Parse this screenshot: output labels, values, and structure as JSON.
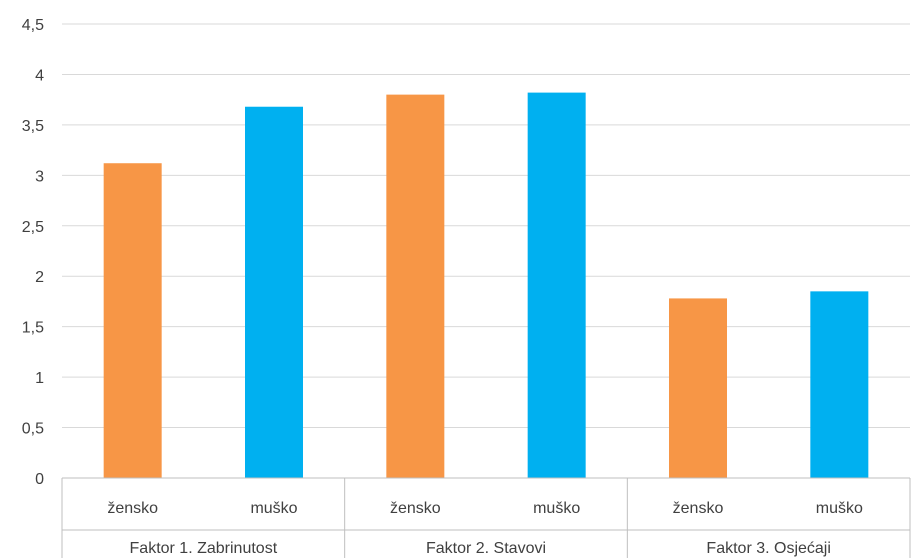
{
  "chart_data": {
    "type": "bar",
    "title": "",
    "xlabel": "",
    "ylabel": "",
    "ylim": [
      0,
      4.5
    ],
    "y_ticks": [
      "0",
      "0,5",
      "1",
      "1,5",
      "2",
      "2,5",
      "3",
      "3,5",
      "4",
      "4,5"
    ],
    "grid": true,
    "legend": "none",
    "groups": [
      {
        "name": "Faktor 1. Zabrinutost",
        "bars": [
          {
            "category": "žensko",
            "value": 3.12,
            "color": "#F79646"
          },
          {
            "category": "muško",
            "value": 3.68,
            "color": "#00B0F0"
          }
        ]
      },
      {
        "name": "Faktor 2. Stavovi",
        "bars": [
          {
            "category": "žensko",
            "value": 3.8,
            "color": "#F79646"
          },
          {
            "category": "muško",
            "value": 3.82,
            "color": "#00B0F0"
          }
        ]
      },
      {
        "name": "Faktor 3. Osjećaji",
        "bars": [
          {
            "category": "žensko",
            "value": 1.78,
            "color": "#F79646"
          },
          {
            "category": "muško",
            "value": 1.85,
            "color": "#00B0F0"
          }
        ]
      }
    ]
  }
}
